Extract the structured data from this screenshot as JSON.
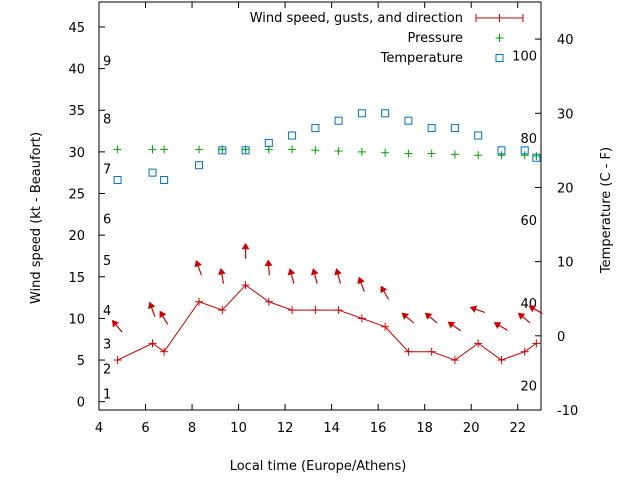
{
  "chart_data": {
    "type": "line",
    "xlabel": "Local time (Europe/Athens)",
    "ylabel": "Wind speed (kt - Beaufort)",
    "y2label": "Temperature (C - F)",
    "xlim": [
      4,
      23
    ],
    "ylim": [
      -1,
      48
    ],
    "y2lim": [
      -10,
      45
    ],
    "xticks": [
      4,
      6,
      8,
      10,
      12,
      14,
      16,
      18,
      20,
      22
    ],
    "yticks": [
      0,
      5,
      10,
      15,
      20,
      25,
      30,
      35,
      40,
      45
    ],
    "y2ticks": [
      -10,
      0,
      10,
      20,
      30,
      40
    ],
    "beaufort_labels": [
      {
        "label": "1",
        "y": 1
      },
      {
        "label": "2",
        "y": 4
      },
      {
        "label": "3",
        "y": 7
      },
      {
        "label": "4",
        "y": 11
      },
      {
        "label": "5",
        "y": 17
      },
      {
        "label": "6",
        "y": 22
      },
      {
        "label": "7",
        "y": 28
      },
      {
        "label": "8",
        "y": 34
      },
      {
        "label": "9",
        "y": 41
      }
    ],
    "fahrenheit_labels": [
      {
        "label": "20",
        "y2": -6.7
      },
      {
        "label": "40",
        "y2": 4.4
      },
      {
        "label": "60",
        "y2": 15.6
      },
      {
        "label": "80",
        "y2": 26.7
      },
      {
        "label": "100",
        "y2": 37.8
      }
    ],
    "grid": false,
    "legend_position": "top-right",
    "series": [
      {
        "name": "Wind speed, gusts, and direction",
        "axis": "y1",
        "style": "line-points",
        "color": "#cc0000",
        "x": [
          4.8,
          6.3,
          6.8,
          8.3,
          9.3,
          10.3,
          11.3,
          12.3,
          13.3,
          14.3,
          15.3,
          16.3,
          17.3,
          18.3,
          19.3,
          20.3,
          21.3,
          22.3,
          22.8
        ],
        "values": [
          5,
          7,
          6,
          12,
          11,
          14,
          12,
          11,
          11,
          11,
          10,
          9,
          6,
          6,
          5,
          7,
          5,
          6,
          7
        ],
        "arrows_y": [
          9,
          11,
          10,
          16,
          15,
          18,
          16,
          15,
          15,
          15,
          14,
          13,
          10,
          10,
          9,
          11,
          9,
          10,
          11
        ],
        "arrows_dir_deg": [
          320,
          340,
          330,
          340,
          350,
          0,
          355,
          345,
          345,
          345,
          340,
          330,
          310,
          310,
          305,
          290,
          300,
          310,
          300
        ]
      },
      {
        "name": "Pressure",
        "axis": "y1",
        "style": "points-plus",
        "color": "#00a000",
        "x": [
          4.8,
          6.3,
          6.8,
          8.3,
          9.3,
          10.3,
          11.3,
          12.3,
          13.3,
          14.3,
          15.3,
          16.3,
          17.3,
          18.3,
          19.3,
          20.3,
          21.3,
          22.3,
          22.8
        ],
        "values": [
          30.3,
          30.3,
          30.3,
          30.3,
          30.3,
          30.3,
          30.3,
          30.3,
          30.2,
          30.1,
          30.0,
          29.9,
          29.8,
          29.8,
          29.7,
          29.6,
          29.6,
          29.6,
          29.5
        ]
      },
      {
        "name": "Temperature",
        "axis": "y2",
        "style": "points-square",
        "color": "#0070c0",
        "x": [
          4.8,
          6.3,
          6.8,
          8.3,
          9.3,
          10.3,
          11.3,
          12.3,
          13.3,
          14.3,
          15.3,
          16.3,
          17.3,
          18.3,
          19.3,
          20.3,
          21.3,
          22.3,
          22.8
        ],
        "values": [
          21,
          22,
          21,
          23,
          25,
          25,
          26,
          27,
          28,
          29,
          30,
          30,
          29,
          28,
          28,
          27,
          25,
          25,
          24
        ]
      }
    ]
  }
}
